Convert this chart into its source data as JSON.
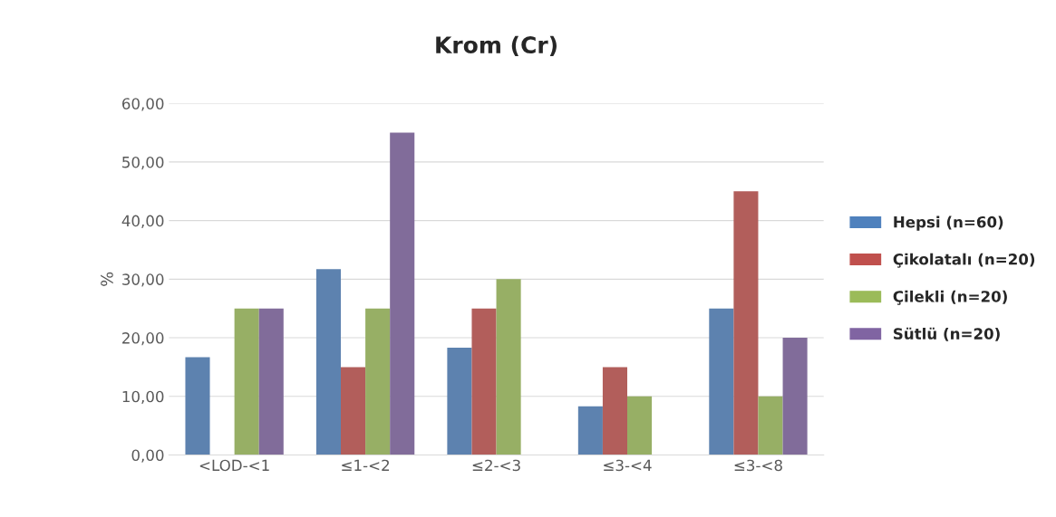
{
  "chart_data": {
    "type": "bar",
    "title": "Krom (Cr)",
    "ylabel": "%",
    "categories": [
      "<LOD-<1",
      "≤1-<2",
      "≤2-<3",
      "≤3-<4",
      "≤3-<8"
    ],
    "series": [
      {
        "name": "Hepsi (n=60)",
        "color": "#4f81bd",
        "values": [
          16.7,
          31.7,
          18.3,
          8.3,
          25
        ]
      },
      {
        "name": "Çikolatalı (n=20)",
        "color": "#c0504d",
        "values": [
          0,
          15,
          25,
          15,
          45
        ]
      },
      {
        "name": "Çilekli (n=20)",
        "color": "#9bbb59",
        "values": [
          25,
          25,
          30,
          10,
          10
        ]
      },
      {
        "name": "Sütlü (n=20)",
        "color": "#8064a2",
        "values": [
          25,
          55,
          0,
          0,
          20
        ]
      }
    ],
    "ylim": [
      0,
      60
    ],
    "yticks": [
      {
        "value": 0,
        "label": "0,00"
      },
      {
        "value": 10,
        "label": "10,00"
      },
      {
        "value": 20,
        "label": "20,00"
      },
      {
        "value": 30,
        "label": "30,00"
      },
      {
        "value": 40,
        "label": "40,00"
      },
      {
        "value": 50,
        "label": "50,00"
      },
      {
        "value": 60,
        "label": "60,00"
      }
    ],
    "grid": "y",
    "legend": "right"
  }
}
